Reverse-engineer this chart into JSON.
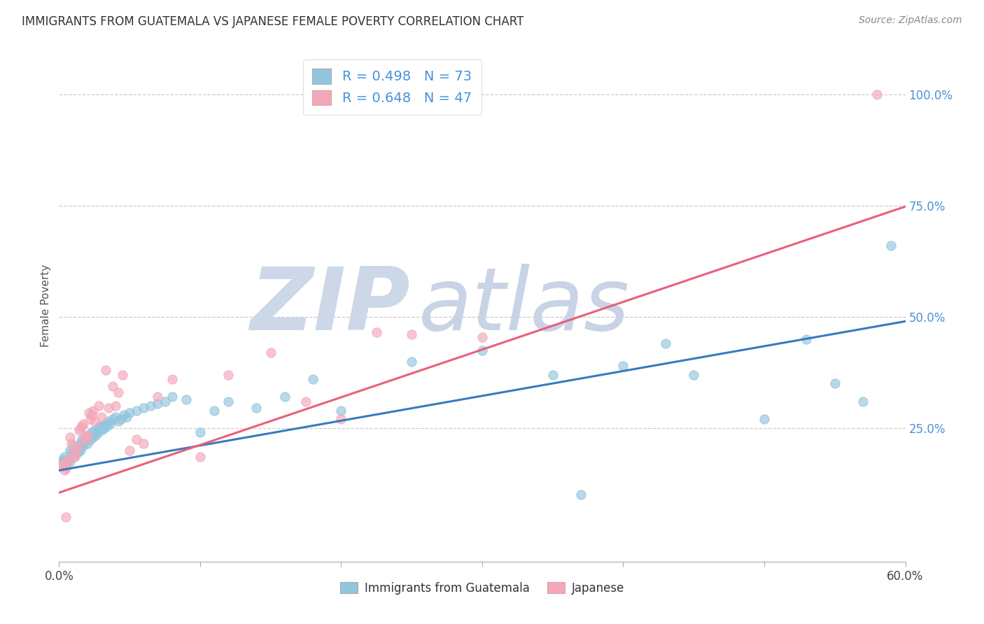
{
  "title": "IMMIGRANTS FROM GUATEMALA VS JAPANESE FEMALE POVERTY CORRELATION CHART",
  "source": "Source: ZipAtlas.com",
  "ylabel": "Female Poverty",
  "legend_label1": "Immigrants from Guatemala",
  "legend_label2": "Japanese",
  "r1": 0.498,
  "n1": 73,
  "r2": 0.648,
  "n2": 47,
  "xlim": [
    0.0,
    0.6
  ],
  "ylim": [
    -0.05,
    1.1
  ],
  "xtick_vals": [
    0.0,
    0.1,
    0.2,
    0.3,
    0.4,
    0.5,
    0.6
  ],
  "xtick_labels": [
    "0.0%",
    "",
    "",
    "",
    "",
    "",
    "60.0%"
  ],
  "yticks_right": [
    0.25,
    0.5,
    0.75,
    1.0
  ],
  "ytick_labels_right": [
    "25.0%",
    "50.0%",
    "75.0%",
    "100.0%"
  ],
  "color_blue": "#92c5de",
  "color_pink": "#f4a7b9",
  "line_blue": "#3a7abf",
  "line_pink": "#e8607a",
  "watermark_zip_color": "#ccd8e8",
  "watermark_atlas_color": "#c8d4e5",
  "blue_line_x": [
    0.0,
    0.6
  ],
  "blue_line_y": [
    0.155,
    0.49
  ],
  "pink_line_x": [
    0.0,
    0.6
  ],
  "pink_line_y": [
    0.105,
    0.748
  ],
  "blue_scatter_x": [
    0.002,
    0.003,
    0.004,
    0.005,
    0.005,
    0.006,
    0.007,
    0.008,
    0.008,
    0.009,
    0.01,
    0.01,
    0.011,
    0.012,
    0.013,
    0.014,
    0.015,
    0.015,
    0.016,
    0.017,
    0.018,
    0.019,
    0.02,
    0.02,
    0.021,
    0.022,
    0.023,
    0.024,
    0.025,
    0.026,
    0.027,
    0.028,
    0.029,
    0.03,
    0.031,
    0.032,
    0.033,
    0.034,
    0.035,
    0.036,
    0.038,
    0.04,
    0.042,
    0.044,
    0.046,
    0.048,
    0.05,
    0.055,
    0.06,
    0.065,
    0.07,
    0.075,
    0.08,
    0.09,
    0.1,
    0.11,
    0.12,
    0.14,
    0.16,
    0.18,
    0.2,
    0.25,
    0.3,
    0.35,
    0.37,
    0.4,
    0.43,
    0.45,
    0.5,
    0.53,
    0.55,
    0.57,
    0.59
  ],
  "blue_scatter_y": [
    0.175,
    0.18,
    0.185,
    0.165,
    0.17,
    0.175,
    0.18,
    0.175,
    0.2,
    0.195,
    0.185,
    0.21,
    0.195,
    0.2,
    0.195,
    0.205,
    0.215,
    0.2,
    0.225,
    0.21,
    0.22,
    0.225,
    0.23,
    0.215,
    0.235,
    0.225,
    0.24,
    0.23,
    0.245,
    0.235,
    0.24,
    0.25,
    0.255,
    0.245,
    0.255,
    0.25,
    0.26,
    0.255,
    0.265,
    0.26,
    0.27,
    0.275,
    0.265,
    0.27,
    0.28,
    0.275,
    0.285,
    0.29,
    0.295,
    0.3,
    0.305,
    0.31,
    0.32,
    0.315,
    0.24,
    0.29,
    0.31,
    0.295,
    0.32,
    0.36,
    0.29,
    0.4,
    0.425,
    0.37,
    0.1,
    0.39,
    0.44,
    0.37,
    0.27,
    0.45,
    0.35,
    0.31,
    0.66
  ],
  "pink_scatter_x": [
    0.002,
    0.003,
    0.004,
    0.005,
    0.005,
    0.006,
    0.007,
    0.008,
    0.009,
    0.01,
    0.011,
    0.012,
    0.013,
    0.014,
    0.015,
    0.016,
    0.017,
    0.018,
    0.019,
    0.02,
    0.021,
    0.022,
    0.023,
    0.024,
    0.025,
    0.028,
    0.03,
    0.033,
    0.035,
    0.038,
    0.04,
    0.042,
    0.045,
    0.05,
    0.055,
    0.06,
    0.07,
    0.08,
    0.1,
    0.12,
    0.15,
    0.175,
    0.2,
    0.225,
    0.25,
    0.3,
    0.58
  ],
  "pink_scatter_y": [
    0.17,
    0.165,
    0.155,
    0.16,
    0.05,
    0.175,
    0.18,
    0.23,
    0.215,
    0.195,
    0.185,
    0.2,
    0.21,
    0.245,
    0.25,
    0.255,
    0.26,
    0.23,
    0.225,
    0.235,
    0.285,
    0.27,
    0.28,
    0.29,
    0.265,
    0.3,
    0.275,
    0.38,
    0.295,
    0.345,
    0.3,
    0.33,
    0.37,
    0.2,
    0.225,
    0.215,
    0.32,
    0.36,
    0.185,
    0.37,
    0.42,
    0.31,
    0.27,
    0.465,
    0.46,
    0.455,
    1.0
  ]
}
